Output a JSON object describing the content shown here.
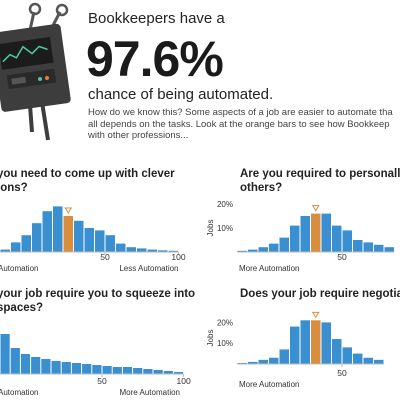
{
  "hero": {
    "prefix": "Bookkeepers have a",
    "percentage": "97.6%",
    "suffix": "chance of being automated.",
    "explanation_lines": [
      "How do we know this? Some aspects of a job are easier to automate tha",
      "all depends on the tasks. Look at the orange bars to see how Bookkeep",
      "with other professions..."
    ]
  },
  "colors": {
    "bar": "#3a8fd0",
    "highlight": "#d98d3f",
    "axis": "#bbbbbb",
    "text": "#222222"
  },
  "questions": [
    {
      "title_lines": [
        "you need to come up with clever",
        "ions?"
      ]
    },
    {
      "title_lines": [
        "Are you required to personally",
        "others?"
      ]
    },
    {
      "title_lines": [
        "your job require you to squeeze into",
        "spaces?"
      ]
    },
    {
      "title_lines": [
        "Does your job require negotiati"
      ]
    }
  ],
  "chart_data": [
    {
      "type": "bar",
      "title": "you need to come up with clever ions?",
      "values": [
        1,
        4,
        7,
        12,
        17,
        19,
        15,
        13,
        10,
        9,
        7,
        3.5,
        2,
        1.5,
        1,
        0.7,
        0.5
      ],
      "highlight_index": 6,
      "x_ticks": [
        {
          "at": 10,
          "label": "50"
        },
        {
          "at": 17,
          "label": "100"
        }
      ],
      "xlabel_left": "Automation",
      "xlabel_right": "Less Automation",
      "ylabel": "",
      "y_ticks": [],
      "ylim": [
        0,
        20
      ]
    },
    {
      "type": "bar",
      "title": "Are you required to personally others?",
      "values": [
        0.5,
        1,
        2,
        3.5,
        6,
        11,
        15,
        16,
        16,
        11,
        9,
        5,
        4,
        3,
        2
      ],
      "highlight_index": 7,
      "x_ticks": [
        {
          "at": 10,
          "label": "50"
        }
      ],
      "xlabel_left": "More Automation",
      "xlabel_right": "",
      "ylabel": "Jobs",
      "y_ticks": [
        {
          "value": 20,
          "label": "20%"
        },
        {
          "value": 10,
          "label": "10%"
        }
      ],
      "ylim": [
        0,
        20
      ]
    },
    {
      "type": "bar",
      "title": "your job require you to squeeze into spaces?",
      "values": [
        20,
        13,
        10,
        8.5,
        7.5,
        6.5,
        6,
        5.5,
        5,
        4.5,
        4,
        3.5,
        3.5,
        3,
        2.5,
        2,
        1.5,
        1
      ],
      "highlight_index": -1,
      "x_ticks": [
        {
          "at": 10,
          "label": "50"
        },
        {
          "at": 18,
          "label": "100"
        }
      ],
      "xlabel_left": "Automation",
      "xlabel_right": "More Automation",
      "ylabel": "",
      "y_ticks": [],
      "ylim": [
        0,
        30
      ]
    },
    {
      "type": "bar",
      "title": "Does your job require negotiati",
      "values": [
        0.5,
        1,
        2,
        3,
        7,
        18,
        21,
        21,
        20,
        12,
        8,
        5,
        3,
        2
      ],
      "highlight_index": 7,
      "x_ticks": [
        {
          "at": 10,
          "label": "50"
        }
      ],
      "xlabel_left": "More Automation",
      "xlabel_right": "",
      "ylabel": "Jobs",
      "y_ticks": [
        {
          "value": 20,
          "label": "20%"
        },
        {
          "value": 10,
          "label": "10%"
        }
      ],
      "ylim": [
        0,
        25
      ]
    }
  ]
}
